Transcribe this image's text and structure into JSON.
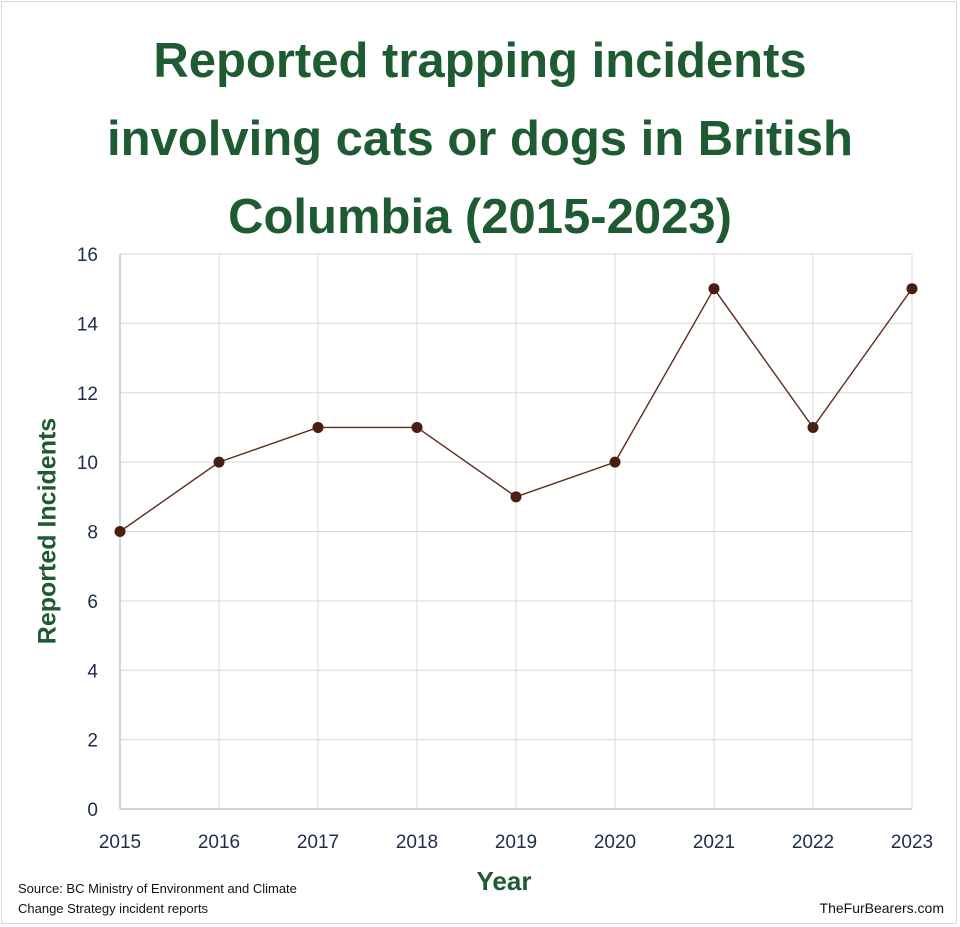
{
  "title_lines": [
    "Reported trapping incidents",
    "involving cats or dogs in British",
    "Columbia (2015-2023)"
  ],
  "source_lines": [
    "Source: BC Ministry of Environment and Climate",
    "Change Strategy incident reports"
  ],
  "credit": "TheFurBearers.com",
  "colors": {
    "title": "#1e5b33",
    "line": "#5a2d1f",
    "marker": "#4a1e12",
    "grid": "#d9d9d9",
    "tick": "#1f2d4a"
  },
  "chart_data": {
    "type": "line",
    "title": "Reported trapping incidents involving cats or dogs in British Columbia (2015-2023)",
    "xlabel": "Year",
    "ylabel": "Reported Incidents",
    "categories": [
      "2015",
      "2016",
      "2017",
      "2018",
      "2019",
      "2020",
      "2021",
      "2022",
      "2023"
    ],
    "series": [
      {
        "name": "Reported Incidents",
        "values": [
          8,
          10,
          11,
          11,
          9,
          10,
          15,
          11,
          15
        ]
      }
    ],
    "ylim": [
      0,
      16
    ],
    "yticks": [
      0,
      2,
      4,
      6,
      8,
      10,
      12,
      14,
      16
    ],
    "grid": true,
    "legend": "none"
  }
}
